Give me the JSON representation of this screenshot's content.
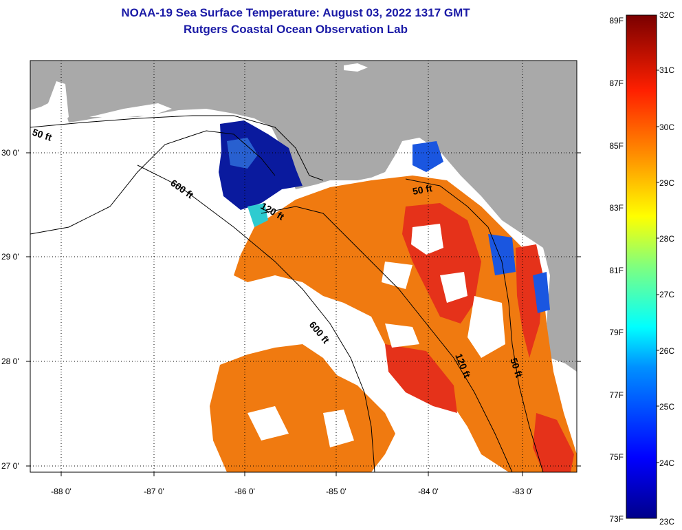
{
  "title": {
    "line1": "NOAA-19 Sea Surface Temperature:  August 03, 2022 1317 GMT",
    "line2": "Rutgers Coastal Ocean Observation Lab"
  },
  "map": {
    "lon_labels": [
      "-88 0'",
      "-87 0'",
      "-86 0'",
      "-85 0'",
      "-84 0'",
      "-83 0'"
    ],
    "lat_labels": [
      "30 0'",
      "29 0'",
      "28 0'",
      "27 0'"
    ],
    "contour_labels": [
      "50 ft",
      "600 ft",
      "120 ft",
      "50 ft",
      "600 ft",
      "120 ft",
      "50 ft"
    ],
    "colors": {
      "land": "#a9a9a9",
      "no_data": "#ffffff",
      "warm": "#f07a10",
      "hot": "#e5321a",
      "cool": "#0a1a9e"
    }
  },
  "colorbar": {
    "fahrenheit": [
      "89F",
      "87F",
      "85F",
      "83F",
      "81F",
      "79F",
      "77F",
      "75F",
      "73F"
    ],
    "celsius": [
      "32C",
      "31C",
      "30C",
      "29C",
      "28C",
      "27C",
      "26C",
      "25C",
      "24C",
      "23C"
    ]
  }
}
